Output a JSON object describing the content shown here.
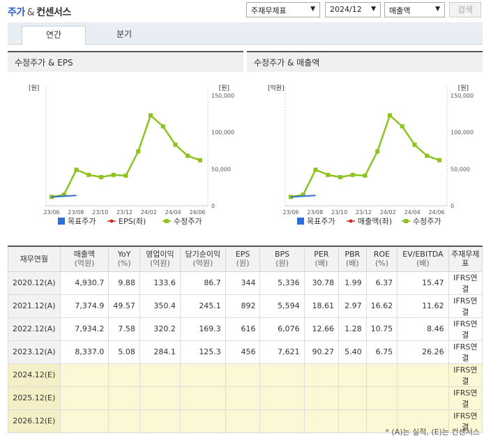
{
  "header": {
    "title_part1": "주가",
    "title_amp": "&",
    "title_part2": "컨센서스",
    "selects": {
      "basis": "주재무제표",
      "period": "2024/12",
      "metric": "매출액"
    },
    "search_label": "검색"
  },
  "tabs": [
    {
      "label": "연간",
      "active": true
    },
    {
      "label": "분기",
      "active": false
    }
  ],
  "charts": {
    "left": {
      "title": "수정주가 & EPS",
      "left_unit": "[원]",
      "right_unit": "[원]",
      "legend": [
        "목표주가",
        "EPS(좌)",
        "수정주가"
      ]
    },
    "right": {
      "title": "수정주가 & 매출액",
      "left_unit": "[억원]",
      "right_unit": "[원]",
      "legend": [
        "목표주가",
        "매출액(좌)",
        "수정주가"
      ]
    }
  },
  "chart_data": [
    {
      "type": "line",
      "title": "수정주가 & EPS",
      "x_ticks": [
        "23/06",
        "23/08",
        "23/10",
        "23/12",
        "24/02",
        "24/04",
        "24/06"
      ],
      "y_right_ticks": [
        "150,000",
        "100,000",
        "50,000",
        "0"
      ],
      "ylim_right": [
        0,
        150000
      ],
      "series": [
        {
          "name": "수정주가",
          "color": "#8dc21f",
          "values": [
            12000,
            15000,
            49000,
            42000,
            39000,
            42000,
            41000,
            74000,
            123000,
            108000,
            83000,
            68000,
            62000
          ]
        },
        {
          "name": "목표주가",
          "color": "#2b6fd6",
          "values": [
            12000,
            13000,
            14000
          ]
        }
      ]
    },
    {
      "type": "line",
      "title": "수정주가 & 매출액",
      "x_ticks": [
        "23/06",
        "23/08",
        "23/10",
        "23/12",
        "24/02",
        "24/04",
        "24/06"
      ],
      "y_right_ticks": [
        "150,000",
        "100,000",
        "50,000",
        "0"
      ],
      "ylim_right": [
        0,
        150000
      ],
      "series": [
        {
          "name": "수정주가",
          "color": "#8dc21f",
          "values": [
            12000,
            15000,
            49000,
            42000,
            39000,
            42000,
            41000,
            74000,
            123000,
            108000,
            83000,
            68000,
            62000
          ]
        },
        {
          "name": "목표주가",
          "color": "#2b6fd6",
          "values": [
            12000,
            13000,
            14000
          ]
        }
      ]
    }
  ],
  "table": {
    "headers": [
      {
        "main": "재무연월",
        "sub": ""
      },
      {
        "main": "매출액",
        "sub": "(억원)"
      },
      {
        "main": "YoY",
        "sub": "(%)"
      },
      {
        "main": "영업이익",
        "sub": "(억원)"
      },
      {
        "main": "당기순이익",
        "sub": "(억원)"
      },
      {
        "main": "EPS",
        "sub": "(원)"
      },
      {
        "main": "BPS",
        "sub": "(원)"
      },
      {
        "main": "PER",
        "sub": "(배)"
      },
      {
        "main": "PBR",
        "sub": "(배)"
      },
      {
        "main": "ROE",
        "sub": "(%)"
      },
      {
        "main": "EV/EBITDA",
        "sub": "(배)"
      },
      {
        "main": "주재무제표",
        "sub": ""
      }
    ],
    "rows": [
      {
        "label": "2020.12(A)",
        "cells": [
          "4,930.7",
          "9.88",
          "133.6",
          "86.7",
          "344",
          "5,336",
          "30.78",
          "1.99",
          "6.37",
          "15.47"
        ],
        "std": "IFRS연결",
        "estimate": false
      },
      {
        "label": "2021.12(A)",
        "cells": [
          "7,374.9",
          "49.57",
          "350.4",
          "245.1",
          "892",
          "5,594",
          "18.61",
          "2.97",
          "16.62",
          "11.62"
        ],
        "std": "IFRS연결",
        "estimate": false
      },
      {
        "label": "2022.12(A)",
        "cells": [
          "7,934.2",
          "7.58",
          "320.2",
          "169.3",
          "616",
          "6,076",
          "12.66",
          "1.28",
          "10.75",
          "8.46"
        ],
        "std": "IFRS연결",
        "estimate": false
      },
      {
        "label": "2023.12(A)",
        "cells": [
          "8,337.0",
          "5.08",
          "284.1",
          "125.3",
          "456",
          "7,621",
          "90.27",
          "5.40",
          "6.75",
          "26.26"
        ],
        "std": "IFRS연결",
        "estimate": false
      },
      {
        "label": "2024.12(E)",
        "cells": [
          "",
          "",
          "",
          "",
          "",
          "",
          "",
          "",
          "",
          ""
        ],
        "std": "IFRS연결",
        "estimate": true
      },
      {
        "label": "2025.12(E)",
        "cells": [
          "",
          "",
          "",
          "",
          "",
          "",
          "",
          "",
          "",
          ""
        ],
        "std": "IFRS연결",
        "estimate": true
      },
      {
        "label": "2026.12(E)",
        "cells": [
          "",
          "",
          "",
          "",
          "",
          "",
          "",
          "",
          "",
          ""
        ],
        "std": "IFRS연결",
        "estimate": true
      }
    ]
  },
  "footnote": "* (A)는 실적, (E)는 컨센서스"
}
